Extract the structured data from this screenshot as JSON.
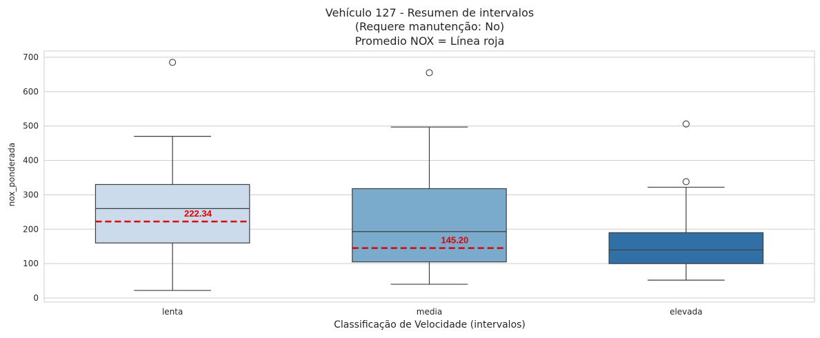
{
  "chart_data": {
    "type": "box",
    "title_lines": [
      "Vehículo 127 - Resumen de intervalos",
      "(Requere manutenção: No)",
      "Promedio NOX = Línea roja"
    ],
    "xlabel": "Classificação de Velocidade (intervalos)",
    "ylabel": "nox_ponderada",
    "categories": [
      "lenta",
      "media",
      "elevada"
    ],
    "yticks": [
      0,
      100,
      200,
      300,
      400,
      500,
      600,
      700
    ],
    "ylim": [
      -12,
      718
    ],
    "grid": "horizontal",
    "boxes": [
      {
        "category": "lenta",
        "whisker_low": 22,
        "q1": 160,
        "median": 260,
        "q3": 330,
        "whisker_high": 470,
        "outliers": [
          685
        ],
        "fill": "#cbdbeb"
      },
      {
        "category": "media",
        "whisker_low": 40,
        "q1": 105,
        "median": 193,
        "q3": 318,
        "whisker_high": 497,
        "outliers": [
          655
        ],
        "fill": "#7aabcc"
      },
      {
        "category": "elevada",
        "whisker_low": 52,
        "q1": 100,
        "median": 140,
        "q3": 190,
        "whisker_high": 322,
        "outliers": [
          338,
          506
        ],
        "fill": "#3170a6"
      }
    ],
    "mean_lines": [
      {
        "category": "lenta",
        "value": 222.34,
        "label": "222.34"
      },
      {
        "category": "media",
        "value": 145.2,
        "label": "145.20"
      }
    ],
    "colors": {
      "mean_line": "#e00000",
      "grid": "#cccccc",
      "box_edge": "#3d3d3d"
    }
  }
}
